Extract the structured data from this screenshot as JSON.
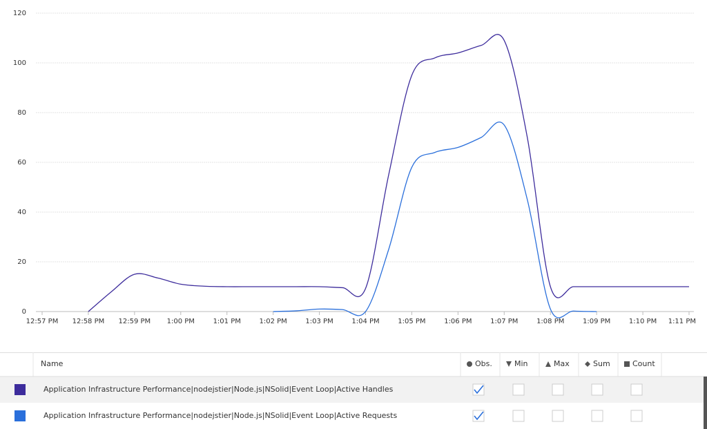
{
  "chart_data": {
    "type": "line",
    "categories": [
      "12:57 PM",
      null,
      "12:58 PM",
      null,
      "12:59 PM",
      null,
      "1:00 PM",
      null,
      "1:01 PM",
      null,
      "1:02 PM",
      null,
      "1:03 PM",
      null,
      "1:04 PM",
      null,
      "1:05 PM",
      null,
      "1:06 PM",
      null,
      "1:07 PM",
      null,
      "1:08 PM",
      null,
      "1:09 PM",
      null,
      "1:10 PM",
      null,
      "1:11 PM"
    ],
    "series": [
      {
        "name": "Application Infrastructure Performance|nodejstier|Node.js|NSolid|Event Loop|Active Handles",
        "color": "#3d2c9c",
        "values": [
          null,
          null,
          0,
          8,
          15,
          13.5,
          11,
          10.2,
          10,
          10,
          10,
          10,
          10,
          9.6,
          9.3,
          55,
          95,
          102,
          104,
          107,
          109,
          70,
          10,
          10,
          10,
          10,
          10,
          10,
          10
        ]
      },
      {
        "name": "Application Infrastructure Performance|nodejstier|Node.js|NSolid|Event Loop|Active Requests",
        "color": "#2a6fdb",
        "values": [
          null,
          null,
          null,
          null,
          null,
          null,
          null,
          null,
          null,
          null,
          0,
          0.3,
          1,
          0.8,
          0,
          25,
          58,
          64,
          66,
          70,
          75,
          45,
          1,
          0.2,
          0,
          null,
          null,
          null,
          null
        ]
      }
    ],
    "ylim": [
      0,
      120
    ],
    "yticks": [
      0,
      20,
      40,
      60,
      80,
      100,
      120
    ],
    "grid": true
  },
  "table": {
    "columns": [
      "Name",
      "Obs.",
      "Min",
      "Max",
      "Sum",
      "Count"
    ],
    "rows": [
      {
        "checked": [
          true,
          false,
          false,
          false,
          false
        ]
      },
      {
        "checked": [
          true,
          false,
          false,
          false,
          false
        ]
      }
    ]
  }
}
